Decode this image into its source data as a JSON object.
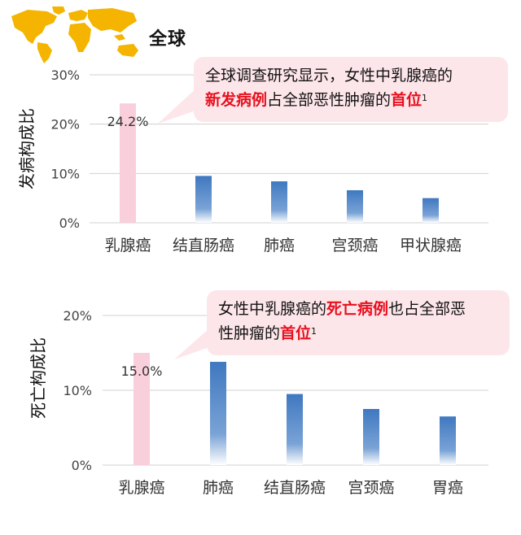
{
  "header": {
    "region_title": "全球",
    "colors": {
      "globe": "#f4b400",
      "highlight": "#e8101e",
      "callout_bg": "#fde6ea",
      "bar_highlight": "#f9cfdc",
      "bar_normal": "#3f78c0"
    }
  },
  "chart_data": [
    {
      "type": "bar",
      "ylabel": "发病构成比",
      "categories": [
        "乳腺癌",
        "结直肠癌",
        "肺癌",
        "宫颈癌",
        "甲状腺癌"
      ],
      "values": [
        24.2,
        9.5,
        8.4,
        6.6,
        5.0
      ],
      "highlight_index": 0,
      "data_labels": [
        "24.2%",
        "",
        "",
        "",
        ""
      ],
      "yticks": [
        "0%",
        "10%",
        "20%",
        "30%"
      ],
      "ylim": [
        0,
        30
      ],
      "grid": true,
      "callout": {
        "line1": "全球调查研究显示，女性中乳腺癌的",
        "hl1": "新发病例",
        "mid": "占全部恶性肿瘤的",
        "hl2": "首位",
        "sup": "1"
      }
    },
    {
      "type": "bar",
      "ylabel": "死亡构成比",
      "categories": [
        "乳腺癌",
        "肺癌",
        "结直肠癌",
        "宫颈癌",
        "胃癌"
      ],
      "values": [
        15.0,
        13.8,
        9.5,
        7.5,
        6.5
      ],
      "highlight_index": 0,
      "data_labels": [
        "15.0%",
        "",
        "",
        "",
        ""
      ],
      "yticks": [
        "0%",
        "10%",
        "20%"
      ],
      "ylim": [
        0,
        20
      ],
      "grid": true,
      "callout": {
        "pre": "女性中乳腺癌的",
        "hl1": "死亡病例",
        "mid": "也占全部恶",
        "line2": "性肿瘤的",
        "hl2": "首位",
        "sup": "1"
      }
    }
  ]
}
